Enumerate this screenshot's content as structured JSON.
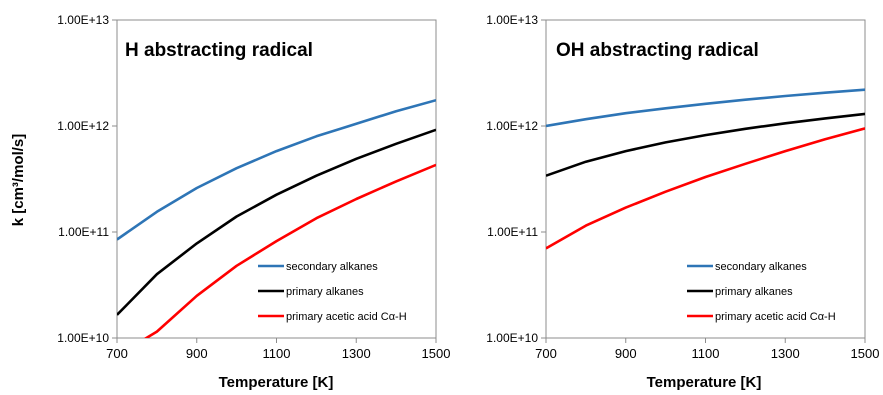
{
  "shared": {
    "ylabel": "k [cm³/mol/s]",
    "xlabel": "Temperature [K]"
  },
  "chart_data": [
    {
      "type": "line",
      "title": "H abstracting radical",
      "xlabel": "Temperature [K]",
      "ylabel": "k [cm³/mol/s]",
      "xlim": [
        700,
        1500
      ],
      "ylim": [
        10000000000.0,
        10000000000000.0
      ],
      "yscale": "log",
      "grid": false,
      "legend_position": "bottom-right",
      "x_ticks": [
        "700",
        "900",
        "1100",
        "1300",
        "1500"
      ],
      "x_tick_values": [
        700,
        900,
        1100,
        1300,
        1500
      ],
      "y_ticks": [
        "1.00E+10",
        "1.00E+11",
        "1.00E+12",
        "1.00E+13"
      ],
      "y_tick_values": [
        10000000000.0,
        100000000000.0,
        1000000000000.0,
        10000000000000.0
      ],
      "x": [
        700,
        800,
        900,
        1000,
        1100,
        1200,
        1300,
        1400,
        1500
      ],
      "series": [
        {
          "name": "secondary alkanes",
          "color": "#2e75b6",
          "values": [
            85000000000.0,
            155000000000.0,
            260000000000.0,
            400000000000.0,
            580000000000.0,
            800000000000.0,
            1050000000000.0,
            1380000000000.0,
            1750000000000.0
          ]
        },
        {
          "name": "primary alkanes",
          "color": "#000000",
          "values": [
            16500000000.0,
            40000000000.0,
            78000000000.0,
            140000000000.0,
            225000000000.0,
            340000000000.0,
            490000000000.0,
            680000000000.0,
            920000000000.0
          ]
        },
        {
          "name": "primary acetic acid Cα-H",
          "color": "#ff0000",
          "values": [
            6800000000.0,
            11500000000.0,
            25000000000.0,
            48000000000.0,
            82000000000.0,
            135000000000.0,
            205000000000.0,
            300000000000.0,
            430000000000.0
          ]
        }
      ]
    },
    {
      "type": "line",
      "title": "OH abstracting radical",
      "xlabel": "Temperature [K]",
      "ylabel": "",
      "xlim": [
        700,
        1500
      ],
      "ylim": [
        10000000000.0,
        10000000000000.0
      ],
      "yscale": "log",
      "grid": false,
      "legend_position": "bottom-right",
      "x_ticks": [
        "700",
        "900",
        "1100",
        "1300",
        "1500"
      ],
      "x_tick_values": [
        700,
        900,
        1100,
        1300,
        1500
      ],
      "y_ticks": [
        "1.00E+10",
        "1.00E+11",
        "1.00E+12",
        "1.00E+13"
      ],
      "y_tick_values": [
        10000000000.0,
        100000000000.0,
        1000000000000.0,
        10000000000000.0
      ],
      "x": [
        700,
        800,
        900,
        1000,
        1100,
        1200,
        1300,
        1400,
        1500
      ],
      "series": [
        {
          "name": "secondary alkanes",
          "color": "#2e75b6",
          "values": [
            1000000000000.0,
            1160000000000.0,
            1320000000000.0,
            1470000000000.0,
            1620000000000.0,
            1770000000000.0,
            1920000000000.0,
            2060000000000.0,
            2200000000000.0
          ]
        },
        {
          "name": "primary alkanes",
          "color": "#000000",
          "values": [
            340000000000.0,
            460000000000.0,
            580000000000.0,
            700000000000.0,
            820000000000.0,
            940000000000.0,
            1060000000000.0,
            1180000000000.0,
            1300000000000.0
          ]
        },
        {
          "name": "primary acetic acid Cα-H",
          "color": "#ff0000",
          "values": [
            70000000000.0,
            115000000000.0,
            170000000000.0,
            240000000000.0,
            330000000000.0,
            440000000000.0,
            580000000000.0,
            750000000000.0,
            950000000000.0
          ]
        }
      ]
    }
  ]
}
